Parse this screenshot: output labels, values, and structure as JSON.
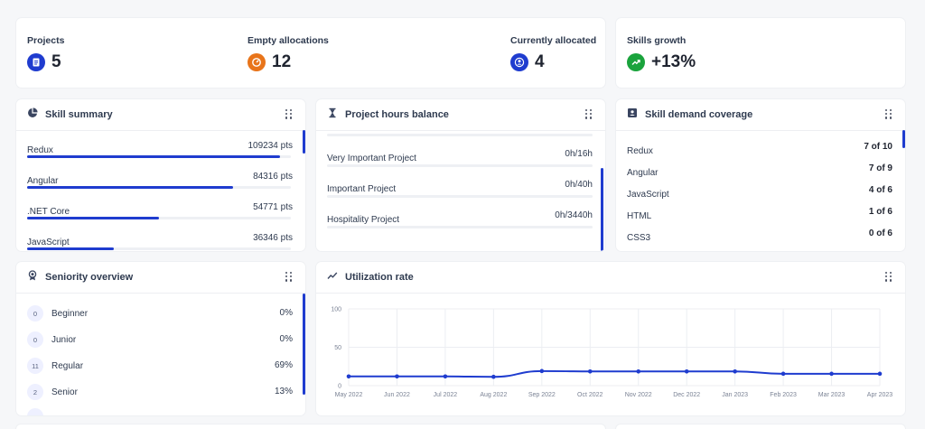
{
  "stats": {
    "projects": {
      "label": "Projects",
      "value": "5"
    },
    "empty": {
      "label": "Empty allocations",
      "value": "12"
    },
    "allocated": {
      "label": "Currently allocated",
      "value": "4"
    },
    "growth": {
      "label": "Skills growth",
      "value": "+13%"
    }
  },
  "skill_summary": {
    "title": "Skill summary",
    "items": [
      {
        "label": "Redux",
        "value": "109234 pts",
        "fraction": 0.96
      },
      {
        "label": "Angular",
        "value": "84316 pts",
        "fraction": 0.78
      },
      {
        "label": ".NET Core",
        "value": "54771 pts",
        "fraction": 0.5
      },
      {
        "label": "JavaScript",
        "value": "36346 pts",
        "fraction": 0.33
      }
    ]
  },
  "project_hours": {
    "title": "Project hours balance",
    "items": [
      {
        "label": "Very Important Project",
        "value": "0h/16h"
      },
      {
        "label": "Important Project",
        "value": "0h/40h"
      },
      {
        "label": "Hospitality Project",
        "value": "0h/3440h"
      }
    ]
  },
  "skill_demand": {
    "title": "Skill demand coverage",
    "items": [
      {
        "label": "Redux",
        "value": "7 of 10"
      },
      {
        "label": "Angular",
        "value": "7 of 9"
      },
      {
        "label": "JavaScript",
        "value": "4 of 6"
      },
      {
        "label": "HTML",
        "value": "1 of 6"
      },
      {
        "label": "CSS3",
        "value": "0 of 6"
      }
    ]
  },
  "seniority": {
    "title": "Seniority overview",
    "items": [
      {
        "count": "0",
        "label": "Beginner",
        "value": "0%"
      },
      {
        "count": "0",
        "label": "Junior",
        "value": "0%"
      },
      {
        "count": "11",
        "label": "Regular",
        "value": "69%"
      },
      {
        "count": "2",
        "label": "Senior",
        "value": "13%"
      }
    ]
  },
  "utilization": {
    "title": "Utilization rate"
  },
  "colors": {
    "accent": "#1f3ccf",
    "orange": "#e8741a",
    "green": "#1aa33c"
  },
  "icons": {
    "projects": "clipboard-icon",
    "empty": "gauge-icon",
    "allocated": "user-icon",
    "growth": "trend-up-icon"
  },
  "chart_data": {
    "type": "line",
    "title": "Utilization rate",
    "x": [
      "May 2022",
      "Jun 2022",
      "Jul 2022",
      "Aug 2022",
      "Sep 2022",
      "Oct 2022",
      "Nov 2022",
      "Dec 2022",
      "Jan 2023",
      "Feb 2023",
      "Mar 2023",
      "Apr 2023"
    ],
    "series": [
      {
        "values": [
          12,
          12,
          12,
          11.5,
          19,
          18.5,
          18.5,
          18.5,
          18.5,
          15.5,
          15.5,
          15.5
        ]
      }
    ],
    "ylim": [
      0,
      100
    ],
    "yticks": [
      0,
      50,
      100
    ],
    "grid": true
  }
}
